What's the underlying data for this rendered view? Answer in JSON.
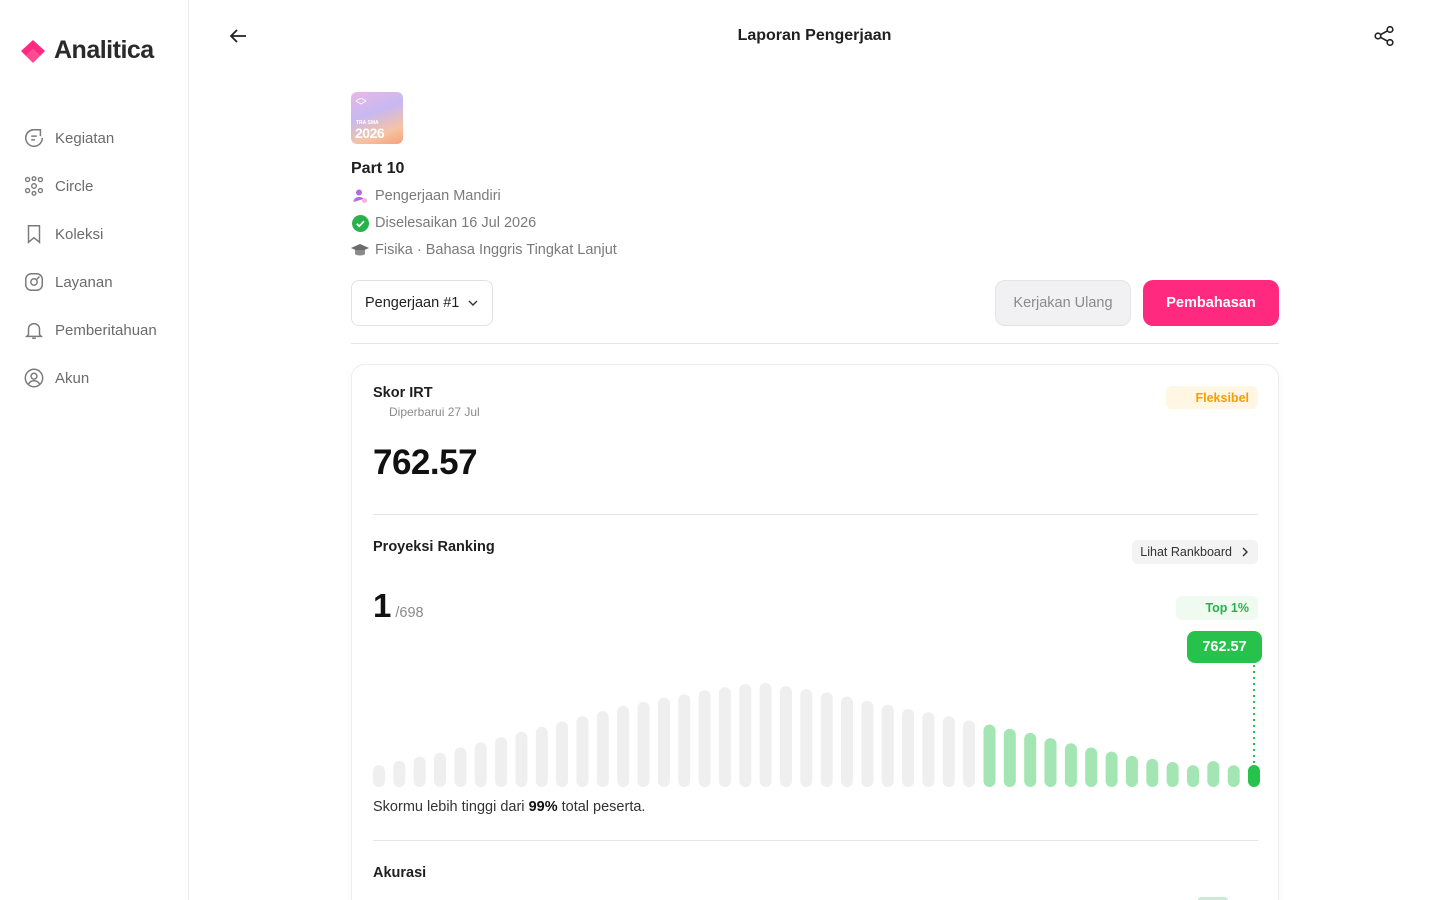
{
  "app": {
    "name": "Analitica"
  },
  "colors": {
    "brand": "#ff2a7f",
    "success": "#27c24c",
    "warning": "#f5a000",
    "bar_gray": "#efefef",
    "bar_green": "#a3e6b3"
  },
  "sidebar": {
    "items": [
      {
        "label": "Kegiatan",
        "icon": "activity-icon"
      },
      {
        "label": "Circle",
        "icon": "circle-group-icon"
      },
      {
        "label": "Koleksi",
        "icon": "bookmark-icon"
      },
      {
        "label": "Layanan",
        "icon": "compass-icon"
      },
      {
        "label": "Pemberitahuan",
        "icon": "bell-icon"
      },
      {
        "label": "Akun",
        "icon": "user-circle-icon"
      }
    ]
  },
  "header": {
    "title": "Laporan Pengerjaan"
  },
  "exam": {
    "thumb_small": "TRA SMA",
    "thumb_year": "2026",
    "title": "Part 10",
    "mode": "Pengerjaan Mandiri",
    "completed": "Diselesaikan 16 Jul 2026",
    "subjects": "Fisika · Bahasa Inggris Tingkat Lanjut"
  },
  "controls": {
    "attempt": "Pengerjaan #1",
    "retry_label": "Kerjakan Ulang",
    "discuss_label": "Pembahasan"
  },
  "score": {
    "title": "Skor IRT",
    "updated": "Diperbarui 27 Jul",
    "badge": "Fleksibel",
    "value": "762.57"
  },
  "ranking": {
    "title": "Proyeksi Ranking",
    "rankboard_label": "Lihat Rankboard",
    "rank": "1",
    "total": "/698",
    "top_badge": "Top 1%",
    "score_pill": "762.57",
    "summary_prefix": "Skormu lebih tinggi dari ",
    "summary_percent": "99%",
    "summary_suffix": " total peserta."
  },
  "accuracy": {
    "title": "Akurasi"
  },
  "chart_data": {
    "type": "bar",
    "values": [
      0.21,
      0.25,
      0.29,
      0.33,
      0.38,
      0.43,
      0.48,
      0.53,
      0.58,
      0.63,
      0.68,
      0.73,
      0.78,
      0.82,
      0.86,
      0.89,
      0.93,
      0.96,
      0.99,
      1.0,
      0.97,
      0.94,
      0.91,
      0.87,
      0.83,
      0.79,
      0.75,
      0.72,
      0.68,
      0.64,
      0.6,
      0.56,
      0.52,
      0.47,
      0.42,
      0.38,
      0.34,
      0.3,
      0.27,
      0.24,
      0.21,
      0.25,
      0.21
    ],
    "highlight_from_index": 30,
    "user_index": 43,
    "user_value": 0.21
  }
}
